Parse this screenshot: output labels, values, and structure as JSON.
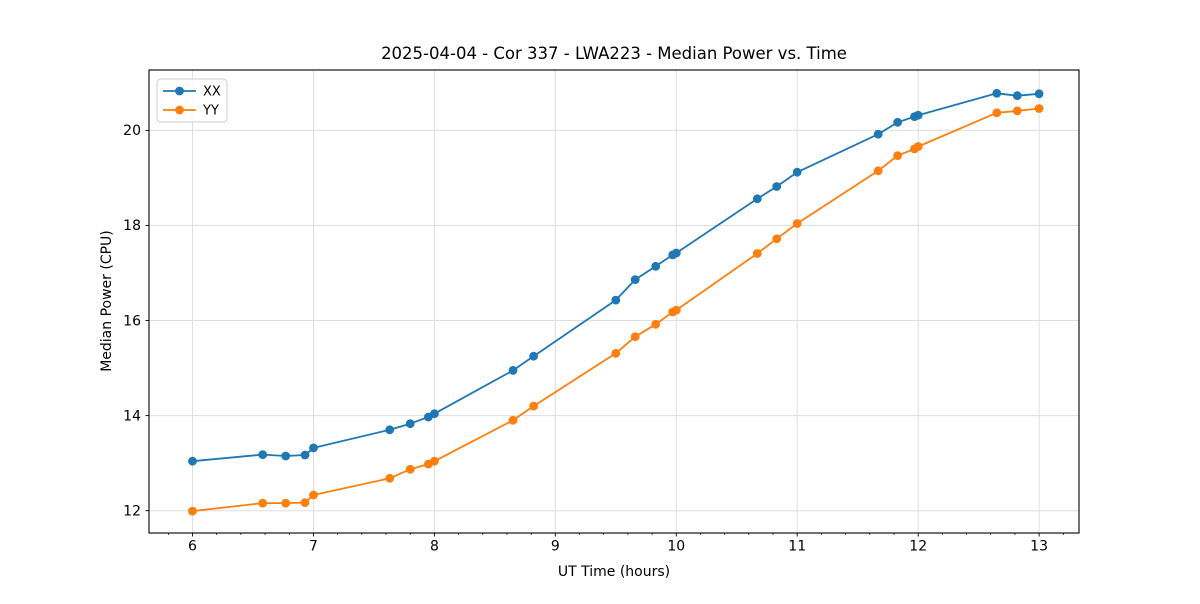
{
  "figure": {
    "background": "#ffffff",
    "plot_border_color": "#000000",
    "grid_color": "#dedede"
  },
  "chart_data": {
    "type": "line",
    "title": "2025-04-04 - Cor 337 - LWA223 - Median Power vs. Time",
    "xlabel": "UT Time (hours)",
    "ylabel": "Median Power (CPU)",
    "xlim": [
      5.64,
      13.33
    ],
    "ylim": [
      11.53,
      21.27
    ],
    "x_ticks": [
      6,
      7,
      8,
      9,
      10,
      11,
      12,
      13
    ],
    "y_ticks": [
      12,
      14,
      16,
      18,
      20
    ],
    "x_minor_tick_step": 0.2,
    "grid": true,
    "legend_position": "upper left",
    "x": [
      6.0,
      6.58,
      6.77,
      6.93,
      7.0,
      7.63,
      7.8,
      7.95,
      8.0,
      8.65,
      8.82,
      9.5,
      9.66,
      9.83,
      9.97,
      10.0,
      10.67,
      10.83,
      11.0,
      11.67,
      11.83,
      11.97,
      12.0,
      12.65,
      12.82,
      13.0
    ],
    "series": [
      {
        "name": "XX",
        "color": "#1f77b4",
        "values": [
          13.04,
          13.18,
          13.15,
          13.17,
          13.32,
          13.7,
          13.83,
          13.97,
          14.04,
          14.95,
          15.25,
          16.43,
          16.86,
          17.14,
          17.38,
          17.42,
          18.56,
          18.82,
          19.12,
          19.92,
          20.17,
          20.29,
          20.32,
          20.78,
          20.73,
          20.77
        ]
      },
      {
        "name": "YY",
        "color": "#ff7f0e",
        "values": [
          11.99,
          12.16,
          12.16,
          12.17,
          12.33,
          12.68,
          12.87,
          12.98,
          13.04,
          13.9,
          14.2,
          15.31,
          15.66,
          15.92,
          16.18,
          16.22,
          17.41,
          17.72,
          18.04,
          19.15,
          19.47,
          19.61,
          19.66,
          20.37,
          20.41,
          20.46
        ]
      }
    ]
  },
  "legend": {
    "entries": [
      "XX",
      "YY"
    ]
  }
}
